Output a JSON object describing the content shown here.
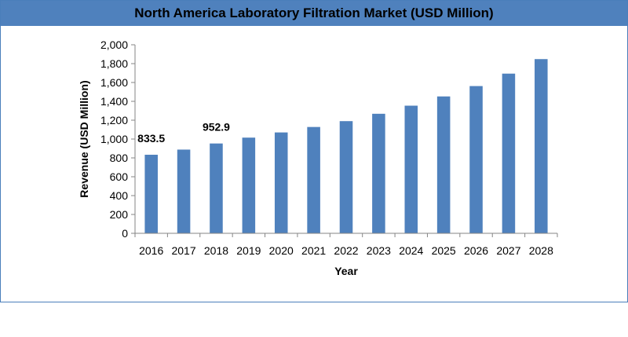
{
  "chart_data": {
    "type": "bar",
    "title": "North America Laboratory Filtration Market (USD Million)",
    "xlabel": "Year",
    "ylabel": "Revenue (USD Million)",
    "categories": [
      "2016",
      "2017",
      "2018",
      "2019",
      "2020",
      "2021",
      "2022",
      "2023",
      "2024",
      "2025",
      "2026",
      "2027",
      "2028"
    ],
    "values": [
      833.5,
      888,
      952.9,
      1015,
      1070,
      1128,
      1190,
      1268,
      1354,
      1452,
      1562,
      1694,
      1848
    ],
    "data_labels": [
      {
        "category": "2016",
        "text": "833.5"
      },
      {
        "category": "2018",
        "text": "952.9"
      }
    ],
    "yticks": [
      "0",
      "200",
      "400",
      "600",
      "800",
      "1,000",
      "1,200",
      "1,400",
      "1,600",
      "1,800",
      "2,000"
    ],
    "ylim": [
      0,
      2000
    ],
    "grid": false,
    "legend": "none",
    "colors": {
      "bar": "#4f81bd",
      "title_bar": "#4f81bd",
      "frame": "#4a7ebb",
      "axis": "#868686"
    }
  }
}
